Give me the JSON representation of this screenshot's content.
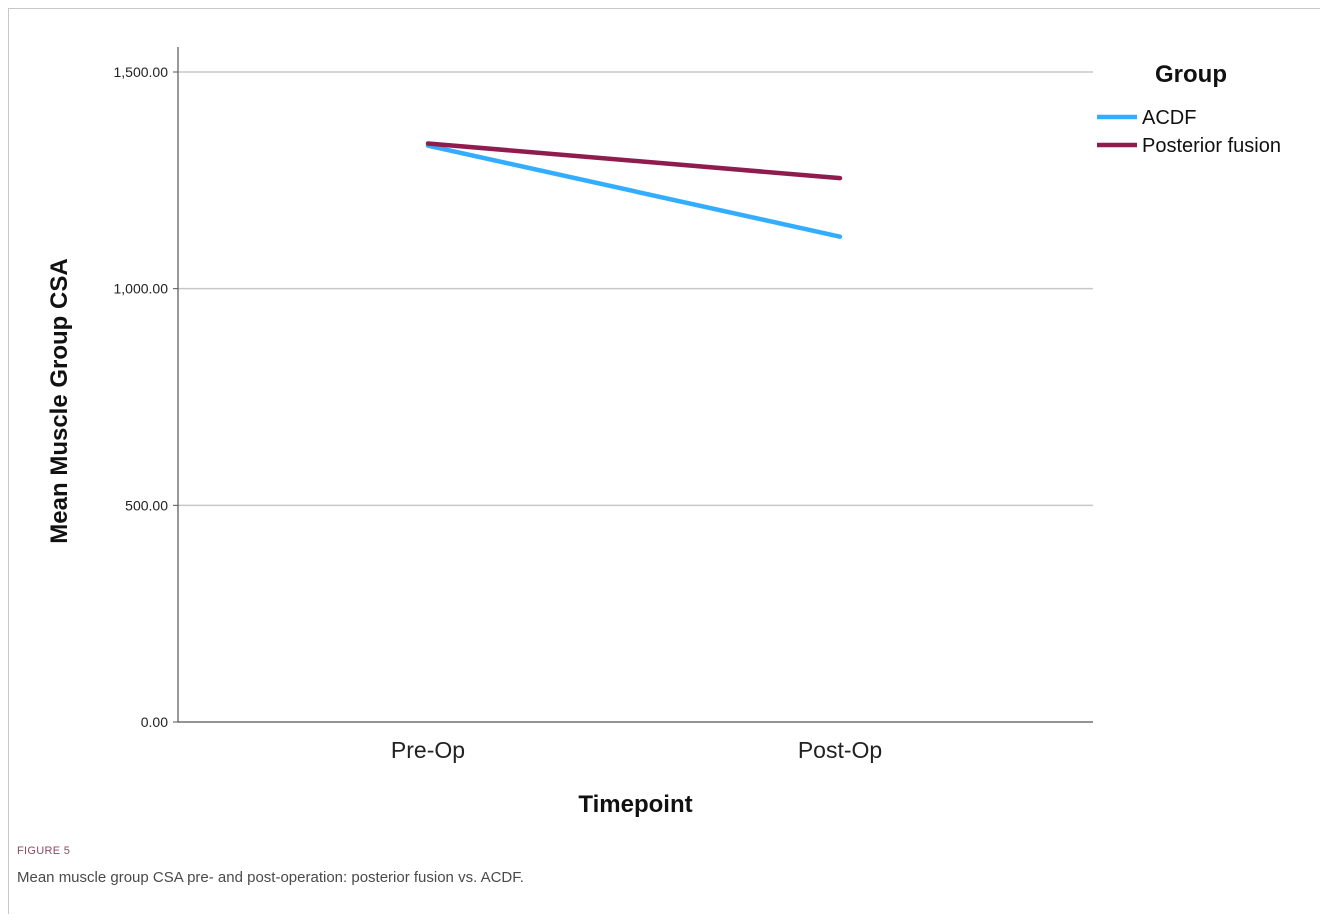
{
  "figure": {
    "label": "FIGURE 5",
    "caption": "Mean muscle group CSA pre- and post-operation: posterior fusion vs. ACDF."
  },
  "chart_data": {
    "type": "line",
    "categories": [
      "Pre-Op",
      "Post-Op"
    ],
    "series": [
      {
        "name": "ACDF",
        "values": [
          1330,
          1120
        ],
        "color": "#33adff"
      },
      {
        "name": "Posterior fusion",
        "values": [
          1335,
          1255
        ],
        "color": "#8f1c4e"
      }
    ],
    "xlabel": "Timepoint",
    "ylabel": "Mean Muscle Group CSA",
    "ylim": [
      0,
      1500
    ],
    "yticks": [
      0,
      500,
      1000,
      1500
    ],
    "ytick_labels": [
      "0.00",
      "500.00",
      "1,000.00",
      "1,500.00"
    ],
    "legend_title": "Group",
    "legend_position": "top-right",
    "grid": "horizontal"
  }
}
